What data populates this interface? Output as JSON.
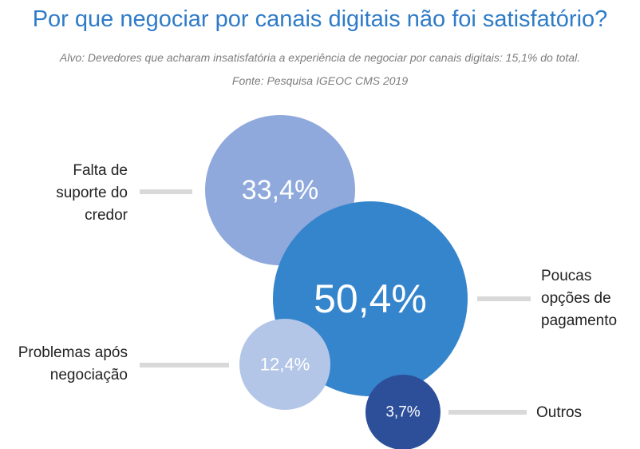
{
  "title": "Por que negociar por canais digitais não foi satisfatório?",
  "subtitle": "Alvo: Devedores que acharam insatisfatória a experiência de negociar por canais digitais: 15,1% do total.",
  "source": "Fonte: Pesquisa IGEOC CMS 2019",
  "chart_data": {
    "type": "bubble",
    "title": "Por que negociar por canais digitais não foi satisfatório?",
    "items": [
      {
        "category": "Falta de suporte do credor",
        "value": 33.4,
        "display": "33,4%",
        "color": "#8fa9dc",
        "label_lines": [
          "Falta de",
          "suporte do",
          "credor"
        ]
      },
      {
        "category": "Poucas opções de pagamento",
        "value": 50.4,
        "display": "50,4%",
        "color": "#3585cc",
        "label_lines": [
          "Poucas",
          "opções de",
          "pagamento"
        ]
      },
      {
        "category": "Problemas após negociação",
        "value": 12.4,
        "display": "12,4%",
        "color": "#b4c6e7",
        "label_lines": [
          "Problemas após",
          "negociação"
        ]
      },
      {
        "category": "Outros",
        "value": 3.7,
        "display": "3,7%",
        "color": "#2d4f9a",
        "label_lines": [
          "Outros"
        ]
      }
    ]
  }
}
